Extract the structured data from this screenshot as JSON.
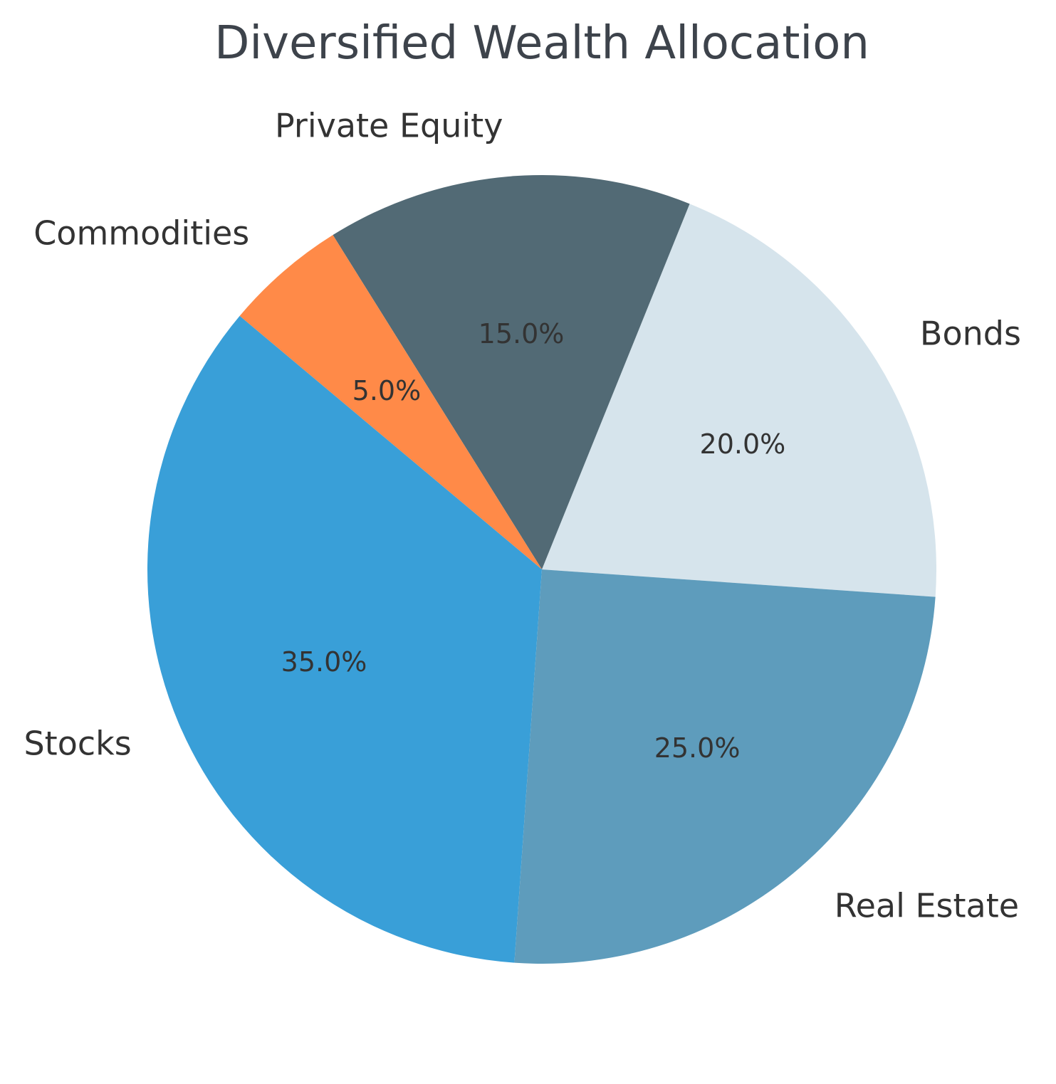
{
  "chart_data": {
    "type": "pie",
    "title": "Diversified Wealth Allocation",
    "categories": [
      "Bonds",
      "Private Equity",
      "Commodities",
      "Stocks",
      "Real Estate"
    ],
    "values": [
      20.0,
      15.0,
      5.0,
      35.0,
      25.0
    ],
    "value_labels": [
      "20.0%",
      "15.0%",
      "5.0%",
      "35.0%",
      "25.0%"
    ],
    "colors": [
      "#d6e4ec",
      "#526a75",
      "#ff8a48",
      "#399fd8",
      "#5e9cbc"
    ],
    "start_angle_deg": -4,
    "direction": "counterclockwise",
    "legend": "none"
  }
}
